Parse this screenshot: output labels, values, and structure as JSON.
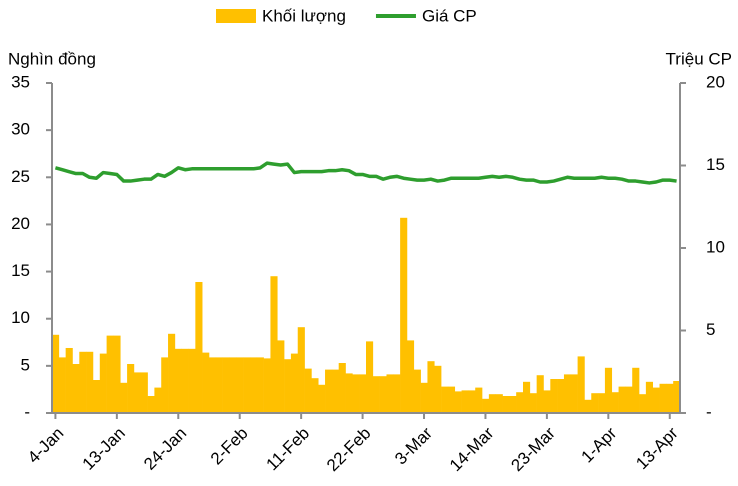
{
  "chart_data": {
    "type": "bar-line",
    "ylabel": "Nghìn đồng",
    "y2label": "Triệu CP",
    "categories": [
      "4-Jan",
      null,
      null,
      null,
      null,
      null,
      null,
      null,
      null,
      "13-Jan",
      null,
      null,
      null,
      null,
      null,
      null,
      null,
      null,
      "24-Jan",
      null,
      null,
      null,
      null,
      null,
      null,
      null,
      null,
      "2-Feb",
      null,
      null,
      null,
      null,
      null,
      null,
      null,
      null,
      "11-Feb",
      null,
      null,
      null,
      null,
      null,
      null,
      null,
      null,
      "22-Feb",
      null,
      null,
      null,
      null,
      null,
      null,
      null,
      null,
      "3-Mar",
      null,
      null,
      null,
      null,
      null,
      null,
      null,
      null,
      "14-Mar",
      null,
      null,
      null,
      null,
      null,
      null,
      null,
      null,
      "23-Mar",
      null,
      null,
      null,
      null,
      null,
      null,
      null,
      null,
      "1-Apr",
      null,
      null,
      null,
      null,
      null,
      null,
      null,
      null,
      "13-Apr",
      null
    ],
    "series": [
      {
        "name": "Khối lượng",
        "type": "bar",
        "axis": "y2",
        "color": "#FFC000",
        "values": [
          4.74,
          3.37,
          3.94,
          2.97,
          3.71,
          3.71,
          2.0,
          3.6,
          4.69,
          4.69,
          1.83,
          2.97,
          2.46,
          2.46,
          1.03,
          1.54,
          3.37,
          4.8,
          3.89,
          3.89,
          3.89,
          7.94,
          3.66,
          3.37,
          3.37,
          3.37,
          3.37,
          3.37,
          3.37,
          3.37,
          3.37,
          3.31,
          8.29,
          4.4,
          3.26,
          3.6,
          5.2,
          2.69,
          2.11,
          1.71,
          2.63,
          2.63,
          3.03,
          2.4,
          2.34,
          2.34,
          4.34,
          2.23,
          2.23,
          2.34,
          2.34,
          11.83,
          4.4,
          2.63,
          1.83,
          3.14,
          2.86,
          1.6,
          1.6,
          1.31,
          1.37,
          1.37,
          1.54,
          0.86,
          1.14,
          1.14,
          1.03,
          1.03,
          1.26,
          1.89,
          1.2,
          2.29,
          1.37,
          2.06,
          2.06,
          2.34,
          2.34,
          3.43,
          0.8,
          1.2,
          1.2,
          2.74,
          1.26,
          1.6,
          1.6,
          2.74,
          1.14,
          1.89,
          1.54,
          1.77,
          1.77,
          1.94
        ]
      },
      {
        "name": "Giá CP",
        "type": "line",
        "axis": "y",
        "color": "#2E9E2E",
        "values": [
          26.0,
          25.8,
          25.6,
          25.4,
          25.4,
          25.0,
          24.9,
          25.5,
          25.4,
          25.3,
          24.6,
          24.6,
          24.7,
          24.8,
          24.8,
          25.3,
          25.1,
          25.5,
          26.0,
          25.8,
          25.9,
          25.9,
          25.9,
          25.9,
          25.9,
          25.9,
          25.9,
          25.9,
          25.9,
          25.9,
          26.0,
          26.5,
          26.4,
          26.3,
          26.4,
          25.5,
          25.6,
          25.6,
          25.6,
          25.6,
          25.7,
          25.7,
          25.8,
          25.7,
          25.3,
          25.3,
          25.1,
          25.1,
          24.8,
          25.0,
          25.1,
          24.9,
          24.8,
          24.7,
          24.7,
          24.8,
          24.6,
          24.7,
          24.9,
          24.9,
          24.9,
          24.9,
          24.9,
          25.0,
          25.1,
          25.0,
          25.1,
          25.0,
          24.8,
          24.7,
          24.7,
          24.5,
          24.5,
          24.6,
          24.8,
          25.0,
          24.9,
          24.9,
          24.9,
          24.9,
          25.0,
          24.9,
          24.9,
          24.8,
          24.6,
          24.6,
          24.5,
          24.4,
          24.5,
          24.7,
          24.7,
          24.6
        ]
      }
    ],
    "ylim": [
      0,
      35
    ],
    "yticks": [
      {
        "value": 0,
        "label": "-"
      },
      5,
      10,
      15,
      20,
      25,
      30,
      35
    ],
    "y2lim": [
      0,
      20
    ],
    "y2ticks": [
      {
        "value": 0,
        "label": "-"
      },
      5,
      10,
      15,
      20
    ],
    "legend": "top"
  }
}
